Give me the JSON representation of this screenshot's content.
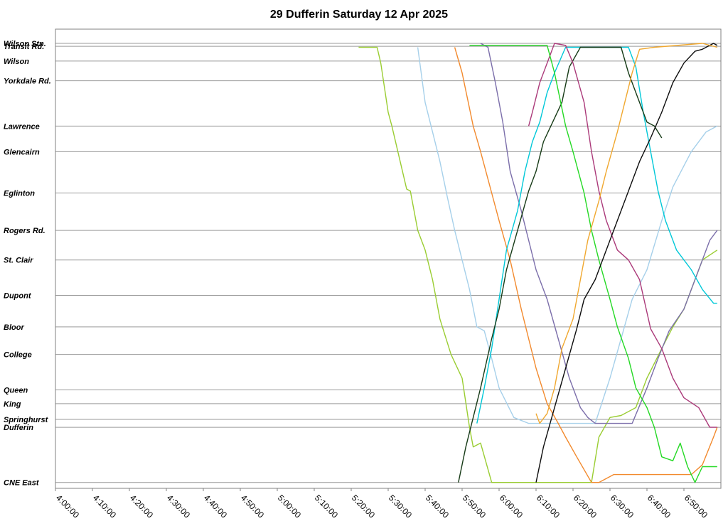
{
  "chart_data": {
    "type": "line",
    "title": "29 Dufferin Saturday 12 Apr 2025",
    "xlabel": "",
    "ylabel": "",
    "x_unit": "time of day",
    "xlim": [
      "4:00:00",
      "7:00:00"
    ],
    "x_ticks": [
      "4:00:00",
      "4:10:00",
      "4:20:00",
      "4:30:00",
      "4:40:00",
      "4:50:00",
      "5:00:00",
      "5:10:00",
      "5:20:00",
      "5:30:00",
      "5:40:00",
      "5:50:00",
      "6:00:00",
      "6:10:00",
      "6:20:00",
      "6:30:00",
      "6:40:00",
      "6:50:00"
    ],
    "stops": [
      {
        "name": "Wilson Stn.",
        "km": 0.0
      },
      {
        "name": "Transit Rd.",
        "km": 0.15
      },
      {
        "name": "Wilson",
        "km": 0.9
      },
      {
        "name": "Yorkdale Rd.",
        "km": 1.9
      },
      {
        "name": "Lawrence",
        "km": 4.2
      },
      {
        "name": "Glencairn",
        "km": 5.5
      },
      {
        "name": "Eglinton",
        "km": 7.6
      },
      {
        "name": "Rogers Rd.",
        "km": 9.5
      },
      {
        "name": "St. Clair",
        "km": 11.0
      },
      {
        "name": "Dupont",
        "km": 12.8
      },
      {
        "name": "Bloor",
        "km": 14.4
      },
      {
        "name": "College",
        "km": 15.8
      },
      {
        "name": "Queen",
        "km": 17.6
      },
      {
        "name": "King",
        "km": 18.3
      },
      {
        "name": "Springhurst",
        "km": 19.1
      },
      {
        "name": "Dufferin",
        "km": 19.5
      },
      {
        "name": "CNE East",
        "km": 22.3
      }
    ],
    "ylim": [
      0,
      22.6
    ],
    "y_reversed": true,
    "grid": true,
    "legend": "none",
    "series": [
      {
        "color": "#9acd32",
        "points": [
          [
            "5:22:00",
            0.2
          ],
          [
            "5:27:00",
            0.2
          ],
          [
            "5:28:00",
            1.0
          ],
          [
            "5:30:00",
            3.5
          ],
          [
            "5:31:00",
            4.2
          ],
          [
            "5:33:00",
            5.8
          ],
          [
            "5:35:00",
            7.4
          ],
          [
            "5:36:00",
            7.5
          ],
          [
            "5:38:00",
            9.5
          ],
          [
            "5:40:00",
            10.5
          ],
          [
            "5:42:00",
            12.0
          ],
          [
            "5:44:00",
            14.0
          ],
          [
            "5:47:00",
            15.8
          ],
          [
            "5:50:00",
            17.0
          ],
          [
            "5:52:00",
            19.5
          ],
          [
            "5:53:00",
            20.5
          ],
          [
            "5:55:00",
            20.3
          ],
          [
            "5:58:00",
            22.3
          ],
          [
            "6:25:00",
            22.3
          ],
          [
            "6:27:00",
            20.0
          ],
          [
            "6:30:00",
            19.0
          ],
          [
            "6:33:00",
            18.9
          ],
          [
            "6:37:00",
            18.5
          ],
          [
            "6:40:00",
            17.0
          ],
          [
            "6:44:00",
            15.5
          ],
          [
            "6:47:00",
            14.4
          ],
          [
            "6:50:00",
            13.5
          ],
          [
            "6:55:00",
            11.0
          ],
          [
            "6:59:00",
            10.5
          ]
        ]
      },
      {
        "color": "#a6d0ea",
        "points": [
          [
            "5:38:00",
            0.2
          ],
          [
            "5:40:00",
            3.0
          ],
          [
            "5:42:00",
            4.5
          ],
          [
            "5:44:00",
            6.0
          ],
          [
            "5:46:00",
            7.8
          ],
          [
            "5:48:00",
            9.5
          ],
          [
            "5:50:00",
            11.0
          ],
          [
            "5:52:00",
            12.5
          ],
          [
            "5:54:00",
            14.4
          ],
          [
            "5:56:00",
            14.6
          ],
          [
            "5:58:00",
            16.0
          ],
          [
            "6:00:00",
            17.5
          ],
          [
            "6:04:00",
            19.0
          ],
          [
            "6:08:00",
            19.3
          ],
          [
            "6:26:00",
            19.3
          ],
          [
            "6:30:00",
            17.0
          ],
          [
            "6:33:00",
            15.0
          ],
          [
            "6:36:00",
            13.0
          ],
          [
            "6:40:00",
            11.5
          ],
          [
            "6:44:00",
            9.0
          ],
          [
            "6:47:00",
            7.3
          ],
          [
            "6:52:00",
            5.5
          ],
          [
            "6:56:00",
            4.5
          ],
          [
            "6:59:00",
            4.2
          ]
        ]
      },
      {
        "color": "#f28a2e",
        "points": [
          [
            "5:48:00",
            0.2
          ],
          [
            "5:50:00",
            1.5
          ],
          [
            "5:53:00",
            4.2
          ],
          [
            "5:55:00",
            5.5
          ],
          [
            "5:58:00",
            7.6
          ],
          [
            "6:00:00",
            9.0
          ],
          [
            "6:03:00",
            11.0
          ],
          [
            "6:06:00",
            13.5
          ],
          [
            "6:08:00",
            15.0
          ],
          [
            "6:10:00",
            16.5
          ],
          [
            "6:13:00",
            18.3
          ],
          [
            "6:16:00",
            19.3
          ],
          [
            "6:18:00",
            20.0
          ],
          [
            "6:21:00",
            21.0
          ],
          [
            "6:25:00",
            22.3
          ],
          [
            "6:27:00",
            22.3
          ],
          [
            "6:31:00",
            21.9
          ],
          [
            "6:52:00",
            21.9
          ],
          [
            "6:55:00",
            21.4
          ],
          [
            "6:58:00",
            20.0
          ],
          [
            "6:59:00",
            19.5
          ]
        ]
      },
      {
        "color": "#7b6eaa",
        "points": [
          [
            "5:55:00",
            0.0
          ],
          [
            "5:57:00",
            0.2
          ],
          [
            "5:59:00",
            2.0
          ],
          [
            "6:01:00",
            4.0
          ],
          [
            "6:03:00",
            6.5
          ],
          [
            "6:06:00",
            8.5
          ],
          [
            "6:08:00",
            10.0
          ],
          [
            "6:10:00",
            11.5
          ],
          [
            "6:13:00",
            13.0
          ],
          [
            "6:16:00",
            15.0
          ],
          [
            "6:19:00",
            17.0
          ],
          [
            "6:22:00",
            18.5
          ],
          [
            "6:24:00",
            19.0
          ],
          [
            "6:26:00",
            19.3
          ],
          [
            "6:36:00",
            19.3
          ],
          [
            "6:40:00",
            17.5
          ],
          [
            "6:43:00",
            16.0
          ],
          [
            "6:46:00",
            14.6
          ],
          [
            "6:50:00",
            13.5
          ],
          [
            "6:54:00",
            11.5
          ],
          [
            "6:57:00",
            10.0
          ],
          [
            "6:59:00",
            9.5
          ]
        ]
      },
      {
        "color": "#00c8d8",
        "points": [
          [
            "5:54:00",
            19.3
          ],
          [
            "5:56:00",
            17.5
          ],
          [
            "5:58:00",
            15.5
          ],
          [
            "6:00:00",
            13.0
          ],
          [
            "6:02:00",
            10.5
          ],
          [
            "6:05:00",
            8.5
          ],
          [
            "6:07:00",
            6.5
          ],
          [
            "6:09:00",
            5.0
          ],
          [
            "6:11:00",
            4.0
          ],
          [
            "6:13:00",
            2.5
          ],
          [
            "6:15:00",
            1.5
          ],
          [
            "6:18:00",
            0.2
          ],
          [
            "6:35:00",
            0.2
          ],
          [
            "6:37:00",
            1.2
          ],
          [
            "6:39:00",
            3.5
          ],
          [
            "6:41:00",
            5.5
          ],
          [
            "6:43:00",
            7.5
          ],
          [
            "6:45:00",
            9.0
          ],
          [
            "6:48:00",
            10.5
          ],
          [
            "6:52:00",
            11.5
          ],
          [
            "6:55:00",
            12.5
          ],
          [
            "6:58:00",
            13.2
          ],
          [
            "6:59:00",
            13.2
          ]
        ]
      },
      {
        "color": "#173b17",
        "points": [
          [
            "5:49:00",
            22.3
          ],
          [
            "5:51:00",
            20.5
          ],
          [
            "5:53:00",
            19.0
          ],
          [
            "5:55:00",
            17.5
          ],
          [
            "5:58:00",
            15.0
          ],
          [
            "6:00:00",
            13.5
          ],
          [
            "6:02:00",
            11.5
          ],
          [
            "6:05:00",
            9.5
          ],
          [
            "6:08:00",
            7.5
          ],
          [
            "6:10:00",
            6.5
          ],
          [
            "6:12:00",
            5.0
          ],
          [
            "6:14:00",
            4.2
          ],
          [
            "6:17:00",
            3.0
          ],
          [
            "6:19:00",
            1.2
          ],
          [
            "6:22:00",
            0.2
          ],
          [
            "6:33:00",
            0.2
          ],
          [
            "6:35:00",
            1.5
          ],
          [
            "6:38:00",
            3.0
          ],
          [
            "6:40:00",
            4.0
          ],
          [
            "6:42:00",
            4.2
          ],
          [
            "6:44:00",
            4.8
          ]
        ]
      },
      {
        "color": "#ab3a7a",
        "points": [
          [
            "6:08:00",
            4.2
          ],
          [
            "6:09:00",
            3.5
          ],
          [
            "6:11:00",
            2.0
          ],
          [
            "6:13:00",
            1.0
          ],
          [
            "6:15:00",
            0.0
          ],
          [
            "6:18:00",
            0.1
          ],
          [
            "6:20:00",
            1.0
          ],
          [
            "6:23:00",
            3.0
          ],
          [
            "6:25:00",
            5.5
          ],
          [
            "6:27:00",
            7.5
          ],
          [
            "6:29:00",
            9.0
          ],
          [
            "6:32:00",
            10.5
          ],
          [
            "6:35:00",
            11.0
          ],
          [
            "6:38:00",
            12.0
          ],
          [
            "6:41:00",
            14.5
          ],
          [
            "6:44:00",
            15.5
          ],
          [
            "6:47:00",
            17.0
          ],
          [
            "6:50:00",
            18.0
          ],
          [
            "6:54:00",
            18.5
          ],
          [
            "6:57:00",
            19.5
          ],
          [
            "6:59:00",
            19.5
          ]
        ]
      },
      {
        "color": "#24d924",
        "points": [
          [
            "5:52:00",
            0.1
          ],
          [
            "6:13:00",
            0.1
          ],
          [
            "6:15:00",
            1.5
          ],
          [
            "6:18:00",
            4.2
          ],
          [
            "6:20:00",
            5.5
          ],
          [
            "6:23:00",
            7.6
          ],
          [
            "6:25:00",
            9.5
          ],
          [
            "6:27:00",
            11.0
          ],
          [
            "6:30:00",
            13.0
          ],
          [
            "6:32:00",
            14.4
          ],
          [
            "6:35:00",
            16.0
          ],
          [
            "6:37:00",
            17.5
          ],
          [
            "6:40:00",
            18.5
          ],
          [
            "6:42:00",
            19.5
          ],
          [
            "6:44:00",
            21.0
          ],
          [
            "6:47:00",
            21.2
          ],
          [
            "6:49:00",
            20.3
          ],
          [
            "6:51:00",
            21.5
          ],
          [
            "6:53:00",
            22.3
          ],
          [
            "6:55:00",
            21.5
          ],
          [
            "6:59:00",
            21.5
          ]
        ]
      },
      {
        "color": "#0d0d0d",
        "points": [
          [
            "6:10:00",
            22.3
          ],
          [
            "6:12:00",
            20.5
          ],
          [
            "6:15:00",
            18.5
          ],
          [
            "6:18:00",
            16.5
          ],
          [
            "6:21:00",
            14.5
          ],
          [
            "6:23:00",
            13.0
          ],
          [
            "6:26:00",
            12.0
          ],
          [
            "6:29:00",
            10.5
          ],
          [
            "6:32:00",
            9.0
          ],
          [
            "6:35:00",
            7.5
          ],
          [
            "6:38:00",
            6.0
          ],
          [
            "6:41:00",
            4.8
          ],
          [
            "6:44:00",
            3.5
          ],
          [
            "6:47:00",
            2.0
          ],
          [
            "6:50:00",
            1.0
          ],
          [
            "6:53:00",
            0.4
          ],
          [
            "6:55:00",
            0.3
          ],
          [
            "6:58:00",
            0.0
          ],
          [
            "6:59:00",
            0.1
          ]
        ]
      },
      {
        "color": "#f0a830",
        "points": [
          [
            "6:10:00",
            18.8
          ],
          [
            "6:11:00",
            19.3
          ],
          [
            "6:13:00",
            18.8
          ],
          [
            "6:15:00",
            17.5
          ],
          [
            "6:17:00",
            15.5
          ],
          [
            "6:20:00",
            14.0
          ],
          [
            "6:22:00",
            12.0
          ],
          [
            "6:24:00",
            10.0
          ],
          [
            "6:27:00",
            8.0
          ],
          [
            "6:29:00",
            6.5
          ],
          [
            "6:32:00",
            4.5
          ],
          [
            "6:34:00",
            3.0
          ],
          [
            "6:36:00",
            1.5
          ],
          [
            "6:38:00",
            0.3
          ],
          [
            "6:42:00",
            0.2
          ],
          [
            "6:55:00",
            0.0
          ],
          [
            "6:59:00",
            0.2
          ]
        ]
      }
    ]
  }
}
